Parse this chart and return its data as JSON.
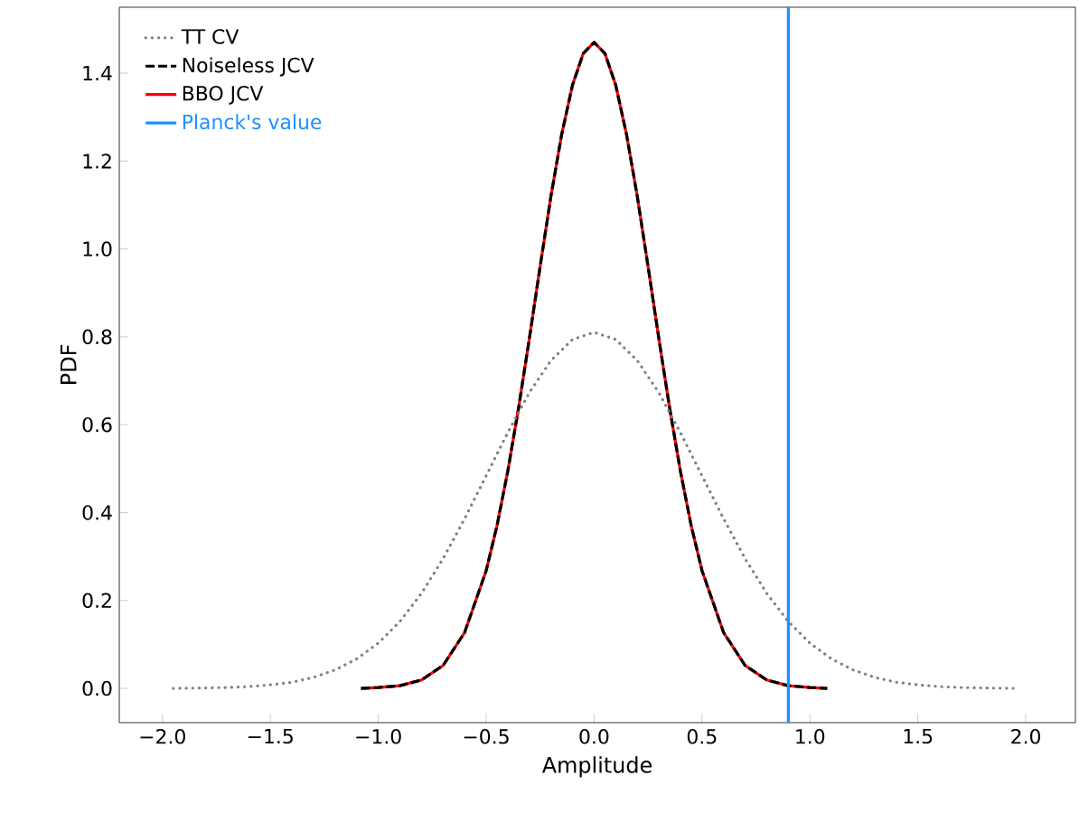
{
  "chart_data": {
    "type": "line",
    "xlabel": "Amplitude",
    "ylabel": "PDF",
    "xlim": [
      -2.2,
      2.23
    ],
    "ylim": [
      -0.078,
      1.55
    ],
    "xticks": [
      {
        "value": -2.0,
        "label": "−2.0"
      },
      {
        "value": -1.5,
        "label": "−1.5"
      },
      {
        "value": -1.0,
        "label": "−1.0"
      },
      {
        "value": -0.5,
        "label": "−0.5"
      },
      {
        "value": 0.0,
        "label": "0.0"
      },
      {
        "value": 0.5,
        "label": "0.5"
      },
      {
        "value": 1.0,
        "label": "1.0"
      },
      {
        "value": 1.5,
        "label": "1.5"
      },
      {
        "value": 2.0,
        "label": "2.0"
      }
    ],
    "yticks": [
      {
        "value": 0.0,
        "label": "0.0"
      },
      {
        "value": 0.2,
        "label": "0.2"
      },
      {
        "value": 0.4,
        "label": "0.4"
      },
      {
        "value": 0.6,
        "label": "0.6"
      },
      {
        "value": 0.8,
        "label": "0.8"
      },
      {
        "value": 1.0,
        "label": "1.0"
      },
      {
        "value": 1.2,
        "label": "1.2"
      },
      {
        "value": 1.4,
        "label": "1.4"
      }
    ],
    "legend": "top left",
    "grid": false,
    "marker": "none",
    "series": [
      {
        "name": "TT CV",
        "color": "#808080",
        "line_style": "dotted",
        "x": [
          -1.95,
          -1.8,
          -1.7,
          -1.6,
          -1.5,
          -1.4,
          -1.3,
          -1.2,
          -1.1,
          -1.0,
          -0.9,
          -0.8,
          -0.7,
          -0.6,
          -0.5,
          -0.4,
          -0.3,
          -0.2,
          -0.1,
          0.0,
          0.1,
          0.2,
          0.3,
          0.4,
          0.5,
          0.6,
          0.7,
          0.8,
          0.9,
          1.0,
          1.1,
          1.2,
          1.3,
          1.4,
          1.5,
          1.6,
          1.7,
          1.8,
          1.95
        ],
        "values": [
          0.0,
          0.001,
          0.002,
          0.004,
          0.008,
          0.014,
          0.025,
          0.042,
          0.067,
          0.103,
          0.152,
          0.216,
          0.295,
          0.386,
          0.484,
          0.582,
          0.673,
          0.746,
          0.794,
          0.81,
          0.794,
          0.746,
          0.673,
          0.582,
          0.484,
          0.386,
          0.295,
          0.216,
          0.152,
          0.103,
          0.067,
          0.042,
          0.025,
          0.014,
          0.008,
          0.004,
          0.002,
          0.001,
          0.0
        ]
      },
      {
        "name": "Noiseless JCV",
        "color": "#000000",
        "line_style": "dashed",
        "x": [
          -1.08,
          -1.0,
          -0.9,
          -0.8,
          -0.7,
          -0.6,
          -0.5,
          -0.45,
          -0.4,
          -0.35,
          -0.3,
          -0.25,
          -0.2,
          -0.15,
          -0.1,
          -0.05,
          0.0,
          0.05,
          0.1,
          0.15,
          0.2,
          0.25,
          0.3,
          0.35,
          0.4,
          0.45,
          0.5,
          0.6,
          0.7,
          0.8,
          0.9,
          1.0,
          1.08
        ],
        "values": [
          0.0,
          0.002,
          0.006,
          0.019,
          0.052,
          0.127,
          0.268,
          0.37,
          0.494,
          0.638,
          0.796,
          0.96,
          1.12,
          1.261,
          1.373,
          1.445,
          1.47,
          1.445,
          1.373,
          1.261,
          1.12,
          0.96,
          0.796,
          0.638,
          0.494,
          0.37,
          0.268,
          0.127,
          0.052,
          0.019,
          0.006,
          0.002,
          0.0
        ]
      },
      {
        "name": "BBO JCV",
        "color": "#ff0000",
        "line_style": "solid",
        "x": [
          -1.08,
          -1.0,
          -0.9,
          -0.8,
          -0.7,
          -0.6,
          -0.5,
          -0.45,
          -0.4,
          -0.35,
          -0.3,
          -0.25,
          -0.2,
          -0.15,
          -0.1,
          -0.05,
          0.0,
          0.05,
          0.1,
          0.15,
          0.2,
          0.25,
          0.3,
          0.35,
          0.4,
          0.45,
          0.5,
          0.6,
          0.7,
          0.8,
          0.9,
          1.0,
          1.08
        ],
        "values": [
          0.0,
          0.002,
          0.006,
          0.019,
          0.052,
          0.127,
          0.268,
          0.37,
          0.494,
          0.638,
          0.796,
          0.96,
          1.12,
          1.261,
          1.373,
          1.445,
          1.47,
          1.445,
          1.373,
          1.261,
          1.12,
          0.96,
          0.796,
          0.638,
          0.494,
          0.37,
          0.268,
          0.127,
          0.052,
          0.019,
          0.006,
          0.002,
          0.0
        ]
      }
    ],
    "ref_lines": [
      {
        "axis": "x",
        "value": 0.9,
        "label": "Planck's value",
        "color": "#1e90ff",
        "line_style": "solid"
      }
    ]
  }
}
